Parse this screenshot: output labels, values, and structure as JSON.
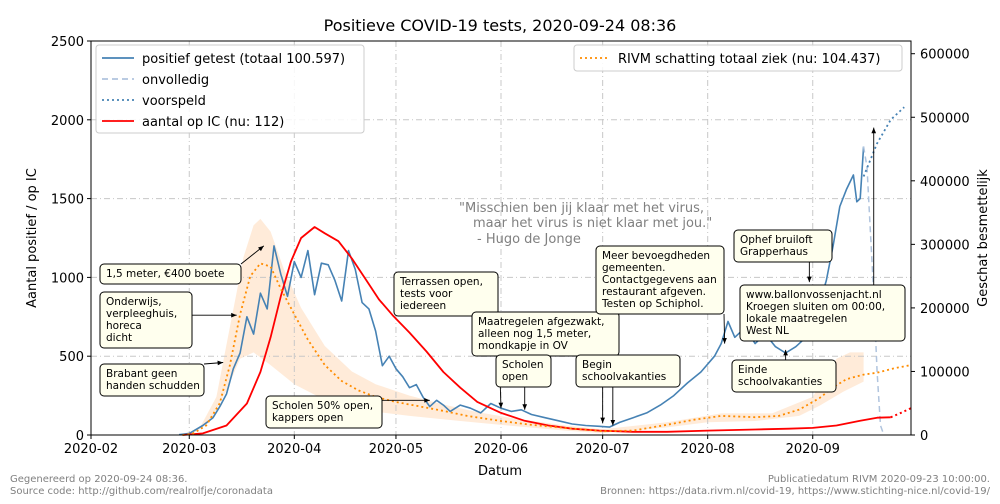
{
  "chart_data": {
    "type": "line",
    "title": "Positieve COVID-19 tests, 2020-09-24 08:36",
    "xlabel": "Datum",
    "ylabel_left": "Aantal positief / op IC",
    "ylabel_right": "Geschat besmettelijk",
    "xlim": [
      "2020-02-01",
      "2020-09-30"
    ],
    "ylim_left": [
      0,
      2500
    ],
    "ylim_right": [
      0,
      620000
    ],
    "x_ticks": [
      "2020-02",
      "2020-03",
      "2020-04",
      "2020-05",
      "2020-06",
      "2020-07",
      "2020-08",
      "2020-09"
    ],
    "y_ticks_left": [
      0,
      500,
      1000,
      1500,
      2000,
      2500
    ],
    "y_ticks_right": [
      0,
      100000,
      200000,
      300000,
      400000,
      500000,
      600000
    ],
    "y_tick_labels_right": [
      "0",
      "100000",
      "200000",
      "300000",
      "400000",
      "500000",
      "600000"
    ],
    "grid": true,
    "legend_left": [
      {
        "label": "positief getest (totaal 100.597)",
        "color": "#4682b4",
        "style": "solid"
      },
      {
        "label": "onvolledig",
        "color": "#b0c4de",
        "style": "dashed"
      },
      {
        "label": "voorspeld",
        "color": "#4682b4",
        "style": "dotted"
      },
      {
        "label": "aantal op IC (nu: 112)",
        "color": "#ff0000",
        "style": "solid"
      }
    ],
    "legend_right": [
      {
        "label": "RIVM schatting totaal ziek (nu: 104.437)",
        "color": "#ff8c00",
        "style": "dotted"
      }
    ],
    "series": [
      {
        "name": "positief getest (totaal 100.597)",
        "axis": "left",
        "color": "#4682b4",
        "points": [
          [
            "2020-02-27",
            2
          ],
          [
            "2020-03-01",
            10
          ],
          [
            "2020-03-05",
            60
          ],
          [
            "2020-03-08",
            110
          ],
          [
            "2020-03-10",
            180
          ],
          [
            "2020-03-12",
            260
          ],
          [
            "2020-03-14",
            420
          ],
          [
            "2020-03-16",
            520
          ],
          [
            "2020-03-18",
            750
          ],
          [
            "2020-03-20",
            640
          ],
          [
            "2020-03-22",
            900
          ],
          [
            "2020-03-24",
            800
          ],
          [
            "2020-03-26",
            1200
          ],
          [
            "2020-03-28",
            1020
          ],
          [
            "2020-03-30",
            880
          ],
          [
            "2020-04-01",
            1100
          ],
          [
            "2020-04-03",
            1000
          ],
          [
            "2020-04-05",
            1170
          ],
          [
            "2020-04-07",
            890
          ],
          [
            "2020-04-09",
            1090
          ],
          [
            "2020-04-11",
            1080
          ],
          [
            "2020-04-13",
            980
          ],
          [
            "2020-04-15",
            850
          ],
          [
            "2020-04-17",
            1170
          ],
          [
            "2020-04-19",
            1050
          ],
          [
            "2020-04-21",
            840
          ],
          [
            "2020-04-23",
            800
          ],
          [
            "2020-04-25",
            660
          ],
          [
            "2020-04-27",
            440
          ],
          [
            "2020-04-29",
            500
          ],
          [
            "2020-05-01",
            420
          ],
          [
            "2020-05-03",
            370
          ],
          [
            "2020-05-05",
            300
          ],
          [
            "2020-05-07",
            320
          ],
          [
            "2020-05-09",
            240
          ],
          [
            "2020-05-11",
            180
          ],
          [
            "2020-05-13",
            220
          ],
          [
            "2020-05-15",
            190
          ],
          [
            "2020-05-17",
            150
          ],
          [
            "2020-05-20",
            190
          ],
          [
            "2020-05-23",
            170
          ],
          [
            "2020-05-26",
            140
          ],
          [
            "2020-05-29",
            200
          ],
          [
            "2020-06-01",
            170
          ],
          [
            "2020-06-04",
            150
          ],
          [
            "2020-06-07",
            160
          ],
          [
            "2020-06-10",
            130
          ],
          [
            "2020-06-14",
            110
          ],
          [
            "2020-06-18",
            90
          ],
          [
            "2020-06-22",
            70
          ],
          [
            "2020-06-26",
            60
          ],
          [
            "2020-06-30",
            55
          ],
          [
            "2020-07-03",
            50
          ],
          [
            "2020-07-06",
            80
          ],
          [
            "2020-07-10",
            110
          ],
          [
            "2020-07-14",
            140
          ],
          [
            "2020-07-18",
            190
          ],
          [
            "2020-07-22",
            250
          ],
          [
            "2020-07-26",
            330
          ],
          [
            "2020-07-30",
            400
          ],
          [
            "2020-08-03",
            500
          ],
          [
            "2020-08-05",
            580
          ],
          [
            "2020-08-07",
            720
          ],
          [
            "2020-08-09",
            620
          ],
          [
            "2020-08-12",
            680
          ],
          [
            "2020-08-15",
            580
          ],
          [
            "2020-08-18",
            640
          ],
          [
            "2020-08-21",
            560
          ],
          [
            "2020-08-24",
            520
          ],
          [
            "2020-08-27",
            560
          ],
          [
            "2020-08-30",
            620
          ],
          [
            "2020-09-02",
            760
          ],
          [
            "2020-09-05",
            980
          ],
          [
            "2020-09-07",
            1200
          ],
          [
            "2020-09-09",
            1450
          ],
          [
            "2020-09-11",
            1560
          ],
          [
            "2020-09-13",
            1650
          ],
          [
            "2020-09-14",
            1480
          ],
          [
            "2020-09-15",
            1500
          ],
          [
            "2020-09-16",
            1830
          ]
        ]
      },
      {
        "name": "onvolledig",
        "axis": "left",
        "color": "#b0c4de",
        "points": [
          [
            "2020-09-16",
            1830
          ],
          [
            "2020-09-17",
            1700
          ],
          [
            "2020-09-18",
            1300
          ],
          [
            "2020-09-19",
            900
          ],
          [
            "2020-09-20",
            400
          ],
          [
            "2020-09-21",
            60
          ],
          [
            "2020-09-22",
            0
          ]
        ]
      },
      {
        "name": "voorspeld",
        "axis": "left",
        "color": "#4682b4",
        "points": [
          [
            "2020-09-16",
            1640
          ],
          [
            "2020-09-20",
            1850
          ],
          [
            "2020-09-24",
            2000
          ],
          [
            "2020-09-28",
            2080
          ]
        ]
      },
      {
        "name": "aantal op IC (nu: 112)",
        "axis": "left",
        "color": "#ff0000",
        "points": [
          [
            "2020-02-28",
            0
          ],
          [
            "2020-03-05",
            10
          ],
          [
            "2020-03-12",
            60
          ],
          [
            "2020-03-18",
            200
          ],
          [
            "2020-03-22",
            400
          ],
          [
            "2020-03-25",
            620
          ],
          [
            "2020-03-28",
            880
          ],
          [
            "2020-03-31",
            1100
          ],
          [
            "2020-04-03",
            1250
          ],
          [
            "2020-04-07",
            1320
          ],
          [
            "2020-04-10",
            1280
          ],
          [
            "2020-04-14",
            1230
          ],
          [
            "2020-04-18",
            1120
          ],
          [
            "2020-04-22",
            990
          ],
          [
            "2020-04-26",
            860
          ],
          [
            "2020-04-30",
            760
          ],
          [
            "2020-05-05",
            650
          ],
          [
            "2020-05-10",
            530
          ],
          [
            "2020-05-15",
            400
          ],
          [
            "2020-05-20",
            300
          ],
          [
            "2020-05-25",
            210
          ],
          [
            "2020-06-01",
            140
          ],
          [
            "2020-06-08",
            90
          ],
          [
            "2020-06-15",
            60
          ],
          [
            "2020-06-22",
            40
          ],
          [
            "2020-06-30",
            28
          ],
          [
            "2020-07-10",
            20
          ],
          [
            "2020-07-20",
            20
          ],
          [
            "2020-08-01",
            28
          ],
          [
            "2020-08-15",
            35
          ],
          [
            "2020-08-25",
            40
          ],
          [
            "2020-09-01",
            45
          ],
          [
            "2020-09-08",
            60
          ],
          [
            "2020-09-15",
            90
          ],
          [
            "2020-09-20",
            110
          ],
          [
            "2020-09-24",
            112
          ]
        ]
      },
      {
        "name": "aantal op IC (voorspeld)",
        "axis": "left",
        "color": "#ff0000",
        "points": [
          [
            "2020-09-24",
            112
          ],
          [
            "2020-09-27",
            140
          ],
          [
            "2020-09-30",
            170
          ]
        ]
      },
      {
        "name": "RIVM schatting totaal ziek (nu: 104.437)",
        "axis": "right",
        "color": "#ff8c00",
        "points": [
          [
            "2020-02-28",
            0
          ],
          [
            "2020-03-02",
            2000
          ],
          [
            "2020-03-06",
            15000
          ],
          [
            "2020-03-10",
            50000
          ],
          [
            "2020-03-13",
            110000
          ],
          [
            "2020-03-16",
            190000
          ],
          [
            "2020-03-19",
            250000
          ],
          [
            "2020-03-22",
            270000
          ],
          [
            "2020-03-25",
            265000
          ],
          [
            "2020-03-28",
            230000
          ],
          [
            "2020-04-01",
            190000
          ],
          [
            "2020-04-05",
            150000
          ],
          [
            "2020-04-10",
            110000
          ],
          [
            "2020-04-15",
            85000
          ],
          [
            "2020-04-20",
            70000
          ],
          [
            "2020-04-25",
            60000
          ],
          [
            "2020-05-01",
            52000
          ],
          [
            "2020-05-08",
            45000
          ],
          [
            "2020-05-15",
            38000
          ],
          [
            "2020-05-22",
            30000
          ],
          [
            "2020-06-01",
            22000
          ],
          [
            "2020-06-10",
            16000
          ],
          [
            "2020-06-20",
            11000
          ],
          [
            "2020-07-01",
            6000
          ],
          [
            "2020-07-10",
            7000
          ],
          [
            "2020-07-20",
            16000
          ],
          [
            "2020-07-28",
            24000
          ],
          [
            "2020-08-05",
            30000
          ],
          [
            "2020-08-15",
            28000
          ],
          [
            "2020-08-22",
            30000
          ],
          [
            "2020-08-28",
            40000
          ],
          [
            "2020-09-03",
            58000
          ],
          [
            "2020-09-07",
            75000
          ],
          [
            "2020-09-11",
            88000
          ],
          [
            "2020-09-16",
            95000
          ],
          [
            "2020-09-20",
            98000
          ],
          [
            "2020-09-25",
            105000
          ],
          [
            "2020-09-30",
            110000
          ]
        ]
      }
    ],
    "band": {
      "name": "RIVM schatting totaal ziek (onzekerheid)",
      "axis": "right",
      "color": "#ffdab9",
      "upper": [
        [
          "2020-02-28",
          0
        ],
        [
          "2020-03-04",
          10000
        ],
        [
          "2020-03-09",
          60000
        ],
        [
          "2020-03-13",
          170000
        ],
        [
          "2020-03-17",
          280000
        ],
        [
          "2020-03-20",
          330000
        ],
        [
          "2020-03-22",
          340000
        ],
        [
          "2020-03-25",
          320000
        ],
        [
          "2020-03-29",
          260000
        ],
        [
          "2020-04-03",
          200000
        ],
        [
          "2020-04-10",
          140000
        ],
        [
          "2020-04-18",
          100000
        ],
        [
          "2020-04-25",
          80000
        ],
        [
          "2020-05-05",
          62000
        ],
        [
          "2020-05-15",
          48000
        ],
        [
          "2020-05-25",
          36000
        ],
        [
          "2020-06-05",
          26000
        ],
        [
          "2020-06-20",
          15000
        ],
        [
          "2020-07-01",
          9000
        ],
        [
          "2020-07-20",
          20000
        ],
        [
          "2020-08-05",
          34000
        ],
        [
          "2020-08-20",
          34000
        ],
        [
          "2020-09-01",
          60000
        ],
        [
          "2020-09-08",
          120000
        ],
        [
          "2020-09-12",
          130000
        ],
        [
          "2020-09-16",
          130000
        ],
        [
          "2020-09-16",
          84000
        ]
      ],
      "lower": [
        [
          "2020-09-16",
          84000
        ],
        [
          "2020-09-10",
          68000
        ],
        [
          "2020-09-03",
          46000
        ],
        [
          "2020-08-28",
          30000
        ],
        [
          "2020-08-15",
          22000
        ],
        [
          "2020-08-01",
          20000
        ],
        [
          "2020-07-20",
          12000
        ],
        [
          "2020-07-01",
          3000
        ],
        [
          "2020-06-20",
          7000
        ],
        [
          "2020-06-05",
          14000
        ],
        [
          "2020-05-20",
          22000
        ],
        [
          "2020-05-05",
          30000
        ],
        [
          "2020-04-20",
          40000
        ],
        [
          "2020-04-10",
          55000
        ],
        [
          "2020-04-01",
          80000
        ],
        [
          "2020-03-25",
          110000
        ],
        [
          "2020-03-20",
          130000
        ],
        [
          "2020-03-16",
          120000
        ],
        [
          "2020-03-12",
          70000
        ],
        [
          "2020-03-07",
          20000
        ],
        [
          "2020-03-02",
          2000
        ],
        [
          "2020-02-28",
          0
        ]
      ]
    },
    "annotations": [
      {
        "lines": [
          "1,5 meter, €400 boete"
        ],
        "target": [
          "2020-03-23",
          1200
        ]
      },
      {
        "lines": [
          "Onderwijs,",
          "verpleeghuis,",
          "horeca",
          "dicht"
        ],
        "target": [
          "2020-03-15",
          760
        ]
      },
      {
        "lines": [
          "Brabant geen",
          "handen schudden"
        ],
        "target": [
          "2020-03-11",
          460
        ]
      },
      {
        "lines": [
          "Scholen 50% open,",
          "kappers open"
        ],
        "target": [
          "2020-05-11",
          220
        ]
      },
      {
        "lines": [
          "Terrassen open,",
          "tests voor",
          "iedereen"
        ],
        "target": [
          "2020-06-01",
          170
        ]
      },
      {
        "lines": [
          "Maatregelen afgezwakt,",
          "alleen nog 1,5 meter,",
          "mondkapje in OV"
        ],
        "target": [
          "2020-07-01",
          75
        ]
      },
      {
        "lines": [
          "Scholen",
          "open"
        ],
        "target": [
          "2020-06-08",
          160
        ]
      },
      {
        "lines": [
          "Begin",
          "schoolvakanties"
        ],
        "target": [
          "2020-07-04",
          60
        ]
      },
      {
        "lines": [
          "Meer bevoegdheden",
          "gemeenten.",
          "Contactgegevens aan",
          "restaurant afgeven.",
          "Testen op Schiphol."
        ],
        "target": [
          "2020-08-06",
          580
        ]
      },
      {
        "lines": [
          "Ophef bruiloft",
          "Grapperhaus"
        ],
        "target": [
          "2020-08-31",
          970
        ]
      },
      {
        "lines": [
          "www.ballonvossenjacht.nl",
          "Kroegen sluiten om 00:00,",
          "lokale maatregelen",
          "West NL"
        ],
        "target": [
          "2020-09-19",
          1950
        ]
      },
      {
        "lines": [
          "Einde",
          "schoolvakanties"
        ],
        "target": [
          "2020-08-24",
          540
        ]
      }
    ],
    "quote": [
      "\"Misschien ben jij klaar met het virus,",
      "maar het virus is niet klaar met jou.\"",
      "- Hugo de Jonge"
    ]
  },
  "footer": {
    "left_line1": "Gegenereerd op 2020-09-24 08:36.",
    "left_line2": "Source code: http://github.com/realrolfje/coronadata",
    "right_line1": "Publicatiedatum RIVM 2020-09-23 10:00:00.",
    "right_line2": "Bronnen: https://data.rivm.nl/covid-19, https://www.stichting-nice.nl/covid-19/"
  }
}
